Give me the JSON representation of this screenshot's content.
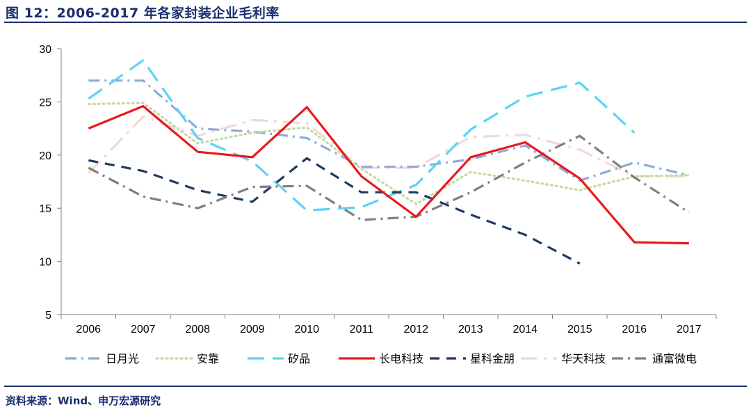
{
  "header": {
    "title": "图 12：2006-2017 年各家封装企业毛利率"
  },
  "footer": {
    "source": "资料来源：Wind、申万宏源研究"
  },
  "chart_data": {
    "type": "line",
    "title": "2006-2017 年各家封装企业毛利率",
    "xlabel": "",
    "ylabel": "",
    "ylim": [
      5,
      30
    ],
    "yticks": [
      5,
      10,
      15,
      20,
      25,
      30
    ],
    "grid": false,
    "legend_position": "bottom",
    "categories": [
      "2006",
      "2007",
      "2008",
      "2009",
      "2010",
      "2011",
      "2012",
      "2013",
      "2014",
      "2015",
      "2016",
      "2017"
    ],
    "series": [
      {
        "name": "日月光",
        "color": "#8eaadb",
        "style": "dashdot",
        "values": [
          27.0,
          27.0,
          22.5,
          22.2,
          21.6,
          18.9,
          18.9,
          19.6,
          20.9,
          17.6,
          19.3,
          18.1
        ]
      },
      {
        "name": "安靠",
        "color": "#c5d9a3",
        "style": "dotted",
        "values": [
          24.8,
          24.9,
          21.1,
          22.1,
          22.6,
          18.7,
          15.4,
          18.4,
          17.6,
          16.7,
          18.0,
          18.1
        ]
      },
      {
        "name": "矽品",
        "color": "#5bd3f5",
        "style": "longdash",
        "values": [
          25.3,
          28.9,
          21.6,
          19.4,
          14.8,
          15.1,
          17.2,
          22.4,
          25.5,
          26.8,
          22.1,
          null
        ]
      },
      {
        "name": "长电科技",
        "color": "#e8191d",
        "style": "solid",
        "values": [
          22.5,
          24.6,
          20.3,
          19.8,
          24.5,
          18.0,
          14.2,
          19.8,
          21.2,
          17.8,
          11.8,
          11.7
        ]
      },
      {
        "name": "星科金朋",
        "color": "#1f3a60",
        "style": "dashed",
        "values": [
          19.5,
          18.5,
          16.7,
          15.6,
          19.7,
          16.5,
          16.5,
          14.4,
          12.5,
          9.8,
          null,
          null
        ]
      },
      {
        "name": "华天科技",
        "color": "#f2d8d8",
        "style": "longdashdot",
        "values": [
          18.3,
          23.6,
          21.8,
          23.3,
          23.0,
          18.8,
          18.8,
          21.7,
          21.9,
          20.5,
          18.0,
          18.0
        ]
      },
      {
        "name": "通富微电",
        "color": "#7f7f7f",
        "style": "dashdot",
        "values": [
          18.8,
          16.1,
          15.0,
          17.0,
          17.1,
          13.9,
          14.2,
          16.5,
          19.3,
          21.8,
          17.9,
          14.6
        ]
      }
    ]
  }
}
